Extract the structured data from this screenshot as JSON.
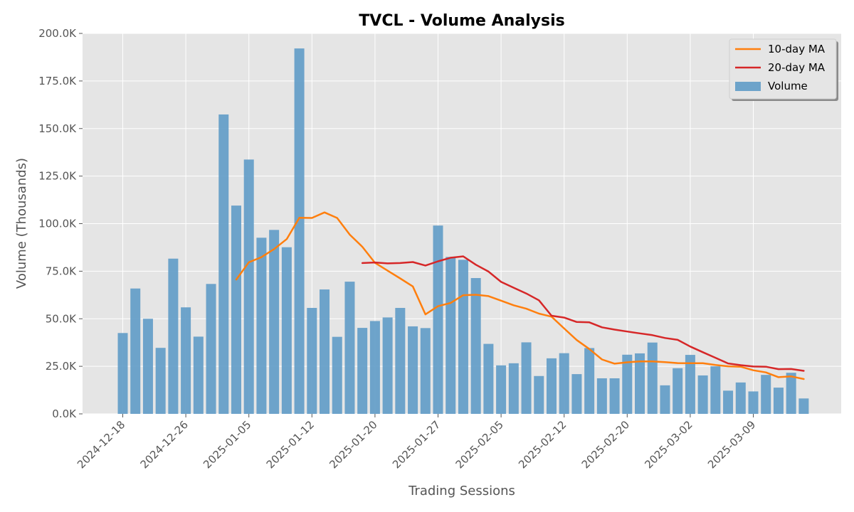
{
  "chart_data": {
    "type": "bar",
    "title": "TVCL - Volume Analysis",
    "xlabel": "Trading Sessions",
    "ylabel": "Volume (Thousands)",
    "ylim": [
      0,
      200000
    ],
    "yticks": [
      0,
      25000,
      50000,
      75000,
      100000,
      125000,
      150000,
      175000,
      200000
    ],
    "yticklabels": [
      "0.0K",
      "25.0K",
      "50.0K",
      "75.0K",
      "100.0K",
      "125.0K",
      "150.0K",
      "175.0K",
      "200.0K"
    ],
    "xticks": [
      {
        "index": 0,
        "label": "2024-12-18"
      },
      {
        "index": 5,
        "label": "2024-12-26"
      },
      {
        "index": 10,
        "label": "2025-01-05"
      },
      {
        "index": 15,
        "label": "2025-01-12"
      },
      {
        "index": 20,
        "label": "2025-01-20"
      },
      {
        "index": 25,
        "label": "2025-01-27"
      },
      {
        "index": 30,
        "label": "2025-02-05"
      },
      {
        "index": 35,
        "label": "2025-02-12"
      },
      {
        "index": 40,
        "label": "2025-02-20"
      },
      {
        "index": 45,
        "label": "2025-03-02"
      },
      {
        "index": 50,
        "label": "2025-03-09"
      }
    ],
    "grid": true,
    "legend_position": "top-right",
    "series": [
      {
        "name": "Volume",
        "kind": "bar",
        "color": "#5f9bc7",
        "values": [
          42500,
          65900,
          50000,
          34700,
          81600,
          56000,
          40600,
          68300,
          157400,
          109500,
          133700,
          92600,
          96700,
          87600,
          192100,
          55700,
          65400,
          40500,
          69500,
          45200,
          48800,
          50700,
          55700,
          46000,
          45100,
          99000,
          82500,
          81000,
          71400,
          36800,
          25500,
          26600,
          37600,
          19900,
          29200,
          31900,
          20900,
          34600,
          18700,
          18700,
          31100,
          31800,
          37500,
          15000,
          24000,
          31000,
          20200,
          25000,
          12200,
          16500,
          11800,
          20500,
          13800,
          21600,
          8100
        ]
      },
      {
        "name": "10-day MA",
        "kind": "line",
        "color": "#ff7f0e",
        "values": [
          null,
          null,
          null,
          null,
          null,
          null,
          null,
          null,
          null,
          70600,
          79700,
          82400,
          86600,
          91900,
          103100,
          103000,
          105900,
          103000,
          94200,
          87800,
          79400,
          75300,
          71200,
          67000,
          52300,
          56600,
          58300,
          62400,
          62600,
          61900,
          59500,
          57100,
          55300,
          52700,
          51100,
          44900,
          38800,
          34100,
          28600,
          26400,
          27100,
          27600,
          27600,
          27200,
          26700,
          26600,
          26600,
          25700,
          25000,
          24800,
          22900,
          21800,
          19300,
          19700,
          18300
        ]
      },
      {
        "name": "20-day MA",
        "kind": "line",
        "color": "#d62728",
        "values": [
          null,
          null,
          null,
          null,
          null,
          null,
          null,
          null,
          null,
          null,
          null,
          null,
          null,
          null,
          null,
          null,
          null,
          null,
          null,
          79300,
          79600,
          79100,
          79300,
          79800,
          78000,
          80200,
          82100,
          82800,
          78400,
          74800,
          69400,
          66300,
          63300,
          59700,
          51600,
          50600,
          48300,
          48100,
          45500,
          44300,
          43300,
          42300,
          41400,
          39900,
          38900,
          35400,
          32400,
          29500,
          26500,
          25600,
          24900,
          24800,
          23500,
          23600,
          22600
        ]
      }
    ]
  }
}
